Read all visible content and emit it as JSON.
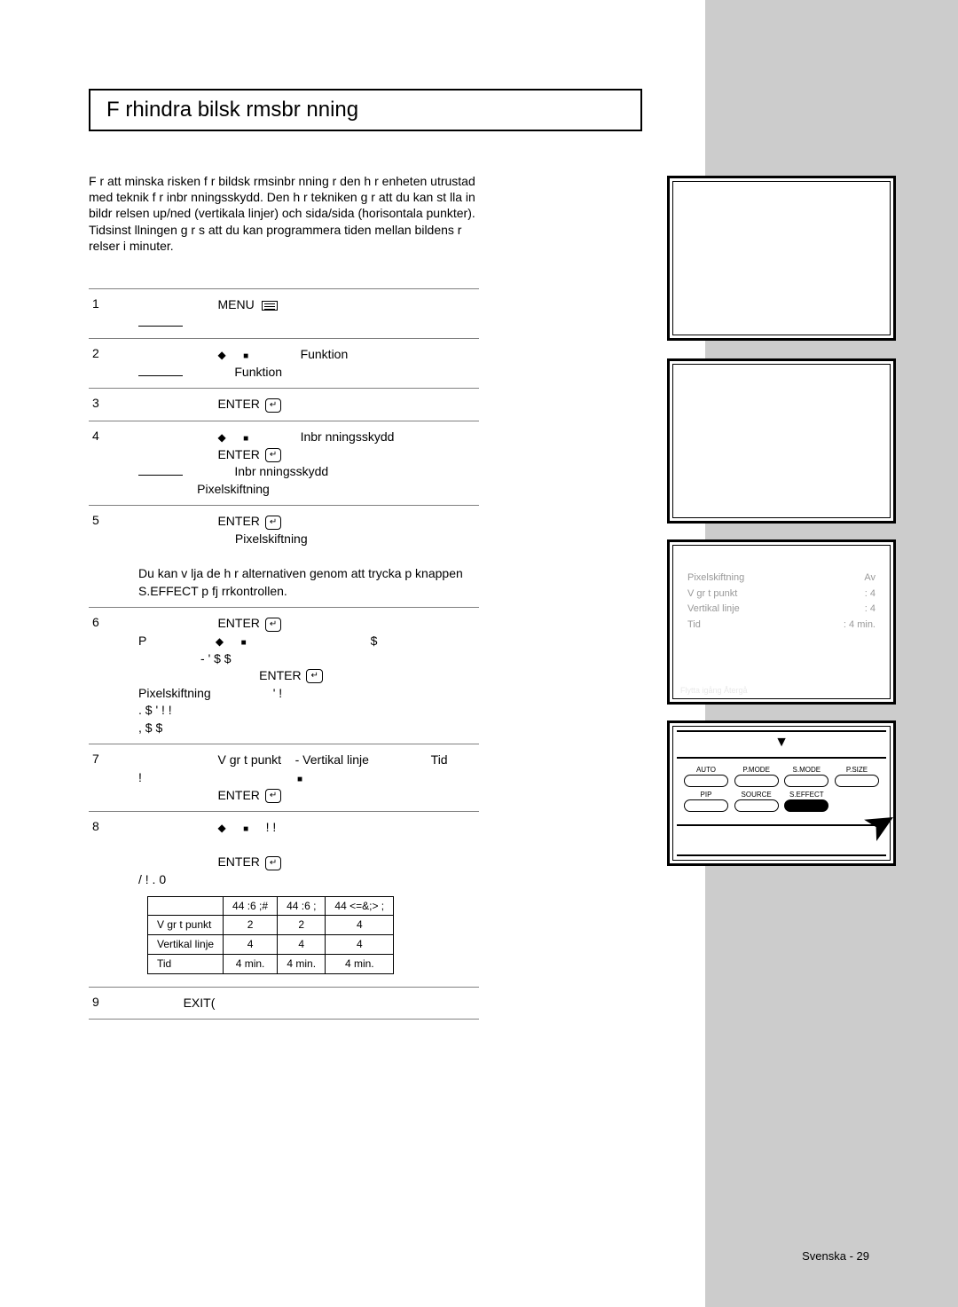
{
  "title": "F rhindra bilsk rmsbr nning",
  "intro": "F r att minska risken f r bildsk rmsinbr nning r den h r enheten utrustad med teknik f r inbr nningsskydd. Den h r tekniken g r att du kan st lla in bildr relsen up/ned (vertikala linjer) och sida/sida (horisontala punkter). Tidsinst llningen g r s att du kan programmera tiden mellan bildens r relser i minuter.",
  "steps": {
    "s1_num": "1",
    "s1_menu": "MENU",
    "s2_num": "2",
    "s2_label1": "Funktion",
    "s2_label2": "Funktion",
    "s3_num": "3",
    "s3_enter": "ENTER",
    "s4_num": "4",
    "s4_label1": "Inbr nningsskydd",
    "s4_enter": "ENTER",
    "s4_label2": "Inbr nningsskydd",
    "s4_label3": "Pixelskiftning",
    "s5_num": "5",
    "s5_enter": "ENTER",
    "s5_label": "Pixelskiftning",
    "s5_text": "Du kan v lja de h r alternativen genom att trycka p knappen S.EFFECT p fj rrkontrollen.",
    "s6_num": "6",
    "s6_enter1": "ENTER",
    "s6_p": "P",
    "s6_dollar": "$",
    "s6_text1": "-     '     $     $",
    "s6_enter2": "ENTER",
    "s6_label": "Pixelskiftning",
    "s6_text2": "'   !",
    "s6_text3": ".         $     ' !   !",
    "s6_text4": ",         $     $",
    "s7_num": "7",
    "s7_a": "V gr t punkt",
    "s7_b": "- Vertikal linje",
    "s7_c": "Tid",
    "s7_bang": "!",
    "s7_enter": "ENTER",
    "s8_num": "8",
    "s8_text1": "!      !",
    "s8_enter": "ENTER",
    "s8_text2": "/     !   .     0",
    "s9_num": "9",
    "s9_exit": "EXIT("
  },
  "table": {
    "h1": "44 :6 ;#",
    "h2": "44 :6 ;",
    "h3": "44 <=&;> ;",
    "r1_label": "V gr t punkt",
    "r1_c1": "2",
    "r1_c2": "2",
    "r1_c3": "4",
    "r2_label": "Vertikal linje",
    "r2_c1": "4",
    "r2_c2": "4",
    "r2_c3": "4",
    "r3_label": "Tid",
    "r3_c1": "4 min.",
    "r3_c2": "4 min.",
    "r3_c3": "4 min."
  },
  "panel3": {
    "row1_l": "Pixelskiftning",
    "row1_r": "Av",
    "row2_l": "V gr t punkt",
    "row2_r": ": 4",
    "row3_l": "Vertikal linje",
    "row3_r": ": 4",
    "row4_l": "Tid",
    "row4_r": ": 4 min.",
    "footer": "Flytta      igång      Återgå"
  },
  "panel4": {
    "buttons_r1": [
      "AUTO",
      "P.MODE",
      "S.MODE",
      "P.SIZE"
    ],
    "buttons_r2": [
      "PIP",
      "SOURCE",
      "S.EFFECT",
      ""
    ]
  },
  "footer": "Svenska - 29"
}
